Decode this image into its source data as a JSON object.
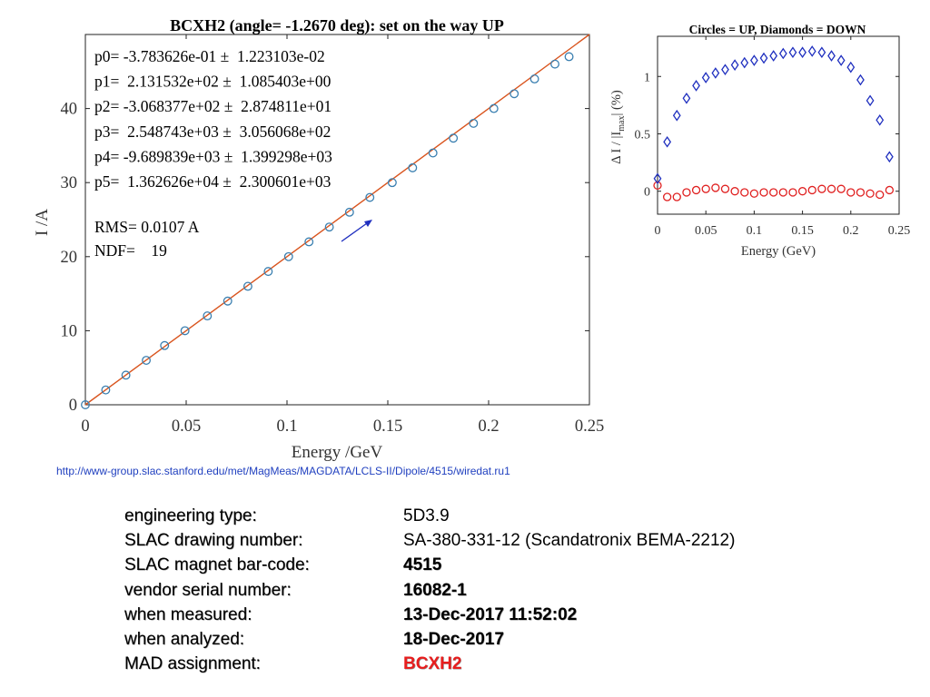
{
  "main_chart": {
    "title": "BCXH2 (angle= -1.2670 deg): set on the way UP",
    "xlabel": "Energy /GeV",
    "ylabel": "I /A",
    "x_ticks": [
      "0",
      "0.05",
      "0.1",
      "0.15",
      "0.2",
      "0.25"
    ],
    "y_ticks": [
      "0",
      "10",
      "20",
      "30",
      "40"
    ],
    "fit_params": [
      "p0= -3.783626e-01 ±  1.223103e-02",
      "p1=  2.131532e+02 ±  1.085403e+00",
      "p2= -3.068377e+02 ±  2.874811e+01",
      "p3=  2.548743e+03 ±  3.056068e+02",
      "p4= -9.689839e+03 ±  1.399298e+03",
      "p5=  1.362626e+04 ±  2.300601e+03"
    ],
    "rms": "RMS= 0.0107 A",
    "ndf": "NDF=    19",
    "colors": {
      "points": "#3a7fb0",
      "fit": "#d9541e",
      "arrow": "#1f2fbf"
    }
  },
  "inset_chart": {
    "title": "Circles = UP, Diamonds = DOWN",
    "xlabel": "Energy (GeV)",
    "ylabel_parts": {
      "prefix": "Δ I / |I",
      "sub": "max",
      "suffix": "| (%)"
    },
    "x_ticks": [
      "0",
      "0.05",
      "0.1",
      "0.15",
      "0.2",
      "0.25"
    ],
    "y_ticks": [
      "0",
      "0.5",
      "1"
    ],
    "colors": {
      "up": "#e02020",
      "down": "#1f2fbf"
    }
  },
  "chart_data": [
    {
      "type": "scatter",
      "title": "BCXH2 (angle= -1.2670 deg): set on the way UP",
      "xlabel": "Energy /GeV",
      "ylabel": "I /A",
      "xlim": [
        0,
        0.25
      ],
      "ylim": [
        0,
        50
      ],
      "grid": false,
      "series": [
        {
          "x": [
            0,
            0.0101,
            0.0201,
            0.0302,
            0.0393,
            0.0494,
            0.0605,
            0.0706,
            0.0806,
            0.0907,
            0.1008,
            0.1109,
            0.121,
            0.131,
            0.1411,
            0.1522,
            0.1623,
            0.1724,
            0.1825,
            0.1925,
            0.2026,
            0.2127,
            0.2228,
            0.2329,
            0.2399
          ],
          "y": [
            0,
            2,
            4,
            6,
            8,
            10,
            12,
            14,
            16,
            18,
            20,
            22,
            24,
            26,
            28,
            30,
            32,
            34,
            36,
            38,
            40,
            42,
            44,
            46,
            47
          ]
        }
      ],
      "fit": "5th-order polynomial"
    },
    {
      "type": "scatter",
      "title": "Circles = UP, Diamonds = DOWN",
      "xlabel": "Energy (GeV)",
      "xlim": [
        0,
        0.25
      ],
      "ylim": [
        -0.2,
        1.35
      ],
      "grid": false,
      "series": [
        {
          "marker": "circle",
          "x": [
            0,
            0.01,
            0.02,
            0.03,
            0.04,
            0.05,
            0.06,
            0.07,
            0.08,
            0.09,
            0.1,
            0.11,
            0.12,
            0.13,
            0.14,
            0.15,
            0.16,
            0.17,
            0.18,
            0.19,
            0.2,
            0.21,
            0.22,
            0.23,
            0.24
          ],
          "values": [
            0.05,
            -0.05,
            -0.05,
            -0.01,
            0.01,
            0.02,
            0.03,
            0.02,
            0.0,
            -0.01,
            -0.02,
            -0.01,
            -0.01,
            -0.01,
            -0.01,
            0.0,
            0.01,
            0.02,
            0.02,
            0.02,
            -0.01,
            -0.01,
            -0.02,
            -0.03,
            0.01
          ]
        },
        {
          "marker": "diamond",
          "x": [
            0,
            0.01,
            0.02,
            0.03,
            0.04,
            0.05,
            0.06,
            0.07,
            0.08,
            0.09,
            0.1,
            0.11,
            0.12,
            0.13,
            0.14,
            0.15,
            0.16,
            0.17,
            0.18,
            0.19,
            0.2,
            0.21,
            0.22,
            0.23,
            0.24
          ],
          "values": [
            0.11,
            0.43,
            0.66,
            0.81,
            0.92,
            0.99,
            1.03,
            1.06,
            1.1,
            1.12,
            1.14,
            1.16,
            1.18,
            1.2,
            1.21,
            1.21,
            1.22,
            1.21,
            1.18,
            1.14,
            1.08,
            0.97,
            0.79,
            0.62,
            0.3
          ]
        }
      ]
    }
  ],
  "source_url": "http://www-group.slac.stanford.edu/met/MagMeas/MAGDATA/LCLS-II/Dipole/4515/wiredat.ru1",
  "info": {
    "rows": [
      {
        "label": "engineering type:",
        "value": "5D3.9",
        "bold": false
      },
      {
        "label": "SLAC drawing number:",
        "value": "SA-380-331-12 (Scandatronix BEMA-2212)",
        "bold": false
      },
      {
        "label": "SLAC magnet bar-code:",
        "value": "4515",
        "bold": true
      },
      {
        "label": "vendor serial number:",
        "value": "16082-1",
        "bold": true
      },
      {
        "label": "when measured:",
        "value": "13-Dec-2017 11:52:02",
        "bold": true
      },
      {
        "label": "when analyzed:",
        "value": "18-Dec-2017",
        "bold": true
      },
      {
        "label": "MAD assignment:",
        "value": "BCXH2",
        "bold": true,
        "color": "#e81e1e"
      }
    ]
  }
}
